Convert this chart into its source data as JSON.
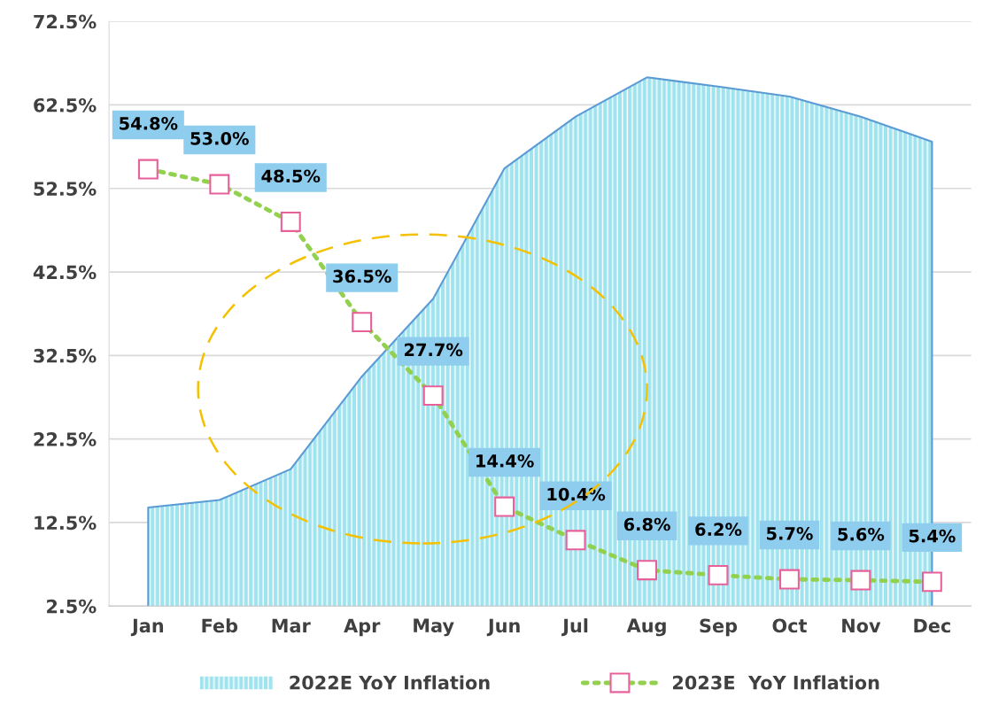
{
  "chart_data": {
    "type": "area",
    "categories": [
      "Jan",
      "Feb",
      "Mar",
      "Apr",
      "May",
      "Jun",
      "Jul",
      "Aug",
      "Sep",
      "Oct",
      "Nov",
      "Dec"
    ],
    "series": [
      {
        "name": "2022E YoY Inflation",
        "color": "#9fe3ee",
        "values": [
          14.3,
          15.2,
          18.9,
          30.0,
          39.3,
          54.9,
          61.1,
          65.8,
          64.7,
          63.5,
          61.1,
          58.1
        ]
      },
      {
        "name": "2023E  YoY Inflation",
        "type": "line",
        "color": "#92d050",
        "marker": "square",
        "line_style": "dotted",
        "values": [
          54.8,
          53.0,
          48.5,
          36.5,
          27.7,
          14.4,
          10.4,
          6.8,
          6.2,
          5.7,
          5.6,
          5.4
        ],
        "value_labels": [
          "54.8%",
          "53.0%",
          "48.5%",
          "36.5%",
          "27.7%",
          "14.4%",
          "10.4%",
          "6.8%",
          "6.2%",
          "5.7%",
          "5.6%",
          "5.4%"
        ]
      }
    ],
    "ylim": [
      2.5,
      72.5
    ],
    "yticks": [
      {
        "value": 2.5,
        "label": "2.5%"
      },
      {
        "value": 12.5,
        "label": "12.5%"
      },
      {
        "value": 22.5,
        "label": "22.5%"
      },
      {
        "value": 32.5,
        "label": "32.5%"
      },
      {
        "value": 42.5,
        "label": "42.5%"
      },
      {
        "value": 52.5,
        "label": "52.5%"
      },
      {
        "value": 62.5,
        "label": "62.5%"
      },
      {
        "value": 72.5,
        "label": "72.5%"
      }
    ],
    "grid": "y",
    "legend": "bottom"
  }
}
